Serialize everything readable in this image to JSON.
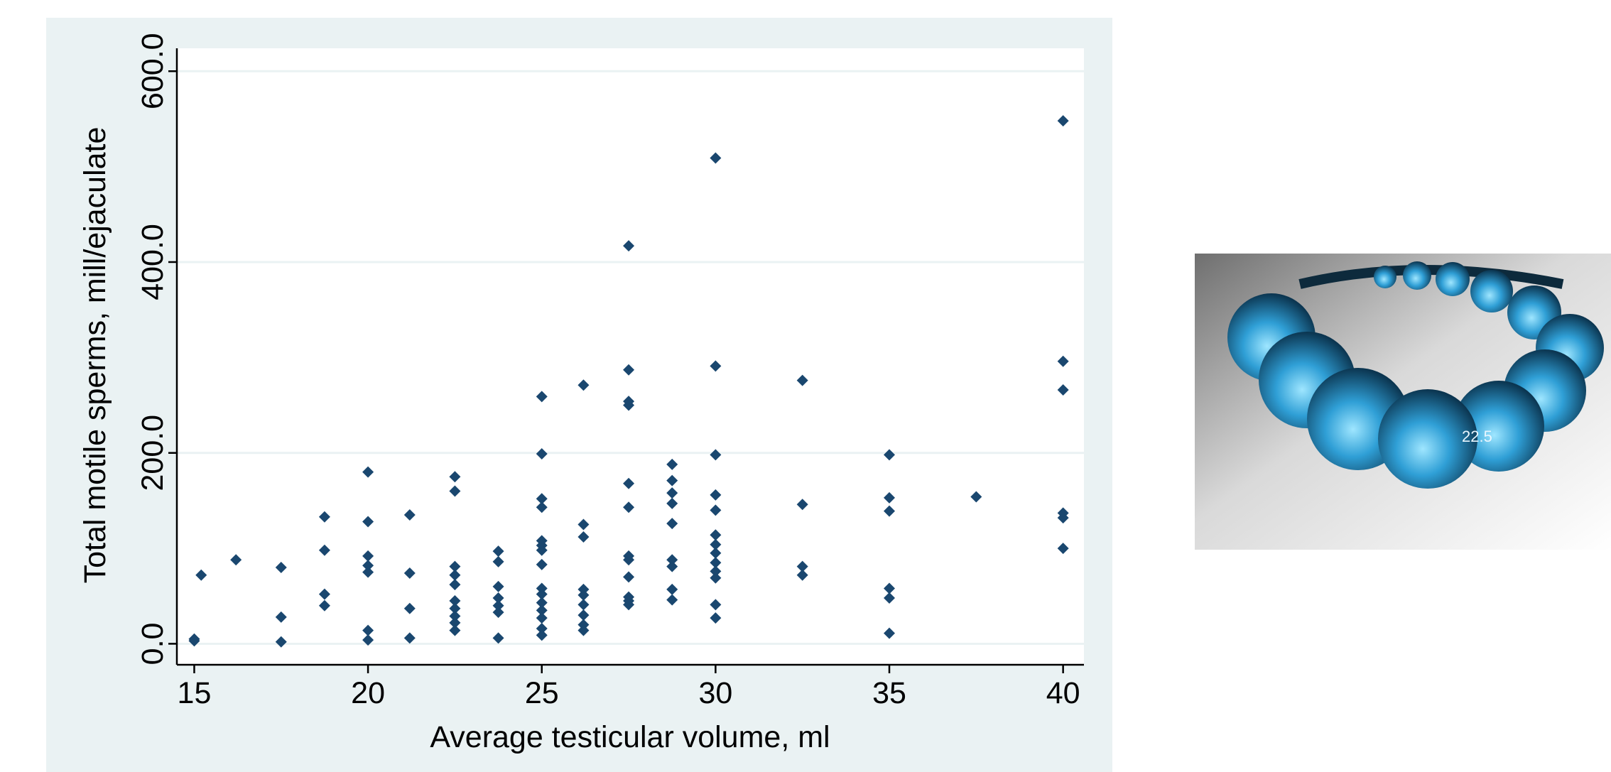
{
  "chart_data": {
    "type": "scatter",
    "xlabel": "Average testicular volume, ml",
    "ylabel": "Total motile sperms, mill/ejaculate",
    "x": [
      15,
      15,
      15.2,
      16.2,
      17.5,
      17.5,
      17.5,
      18.75,
      18.75,
      18.75,
      18.75,
      20,
      20,
      20,
      20,
      20,
      20,
      20,
      21.2,
      21.2,
      21.2,
      21.2,
      22.5,
      22.5,
      22.5,
      22.5,
      22.5,
      22.5,
      22.5,
      22.5,
      22.5,
      22.5,
      23.75,
      23.75,
      23.75,
      23.75,
      23.75,
      23.75,
      23.75,
      25,
      25,
      25,
      25,
      25,
      25,
      25,
      25,
      25,
      25,
      25,
      25,
      25,
      25,
      25,
      26.2,
      26.2,
      26.2,
      26.2,
      26.2,
      26.2,
      26.2,
      26.2,
      26.2,
      27.5,
      27.5,
      27.5,
      27.5,
      27.5,
      27.5,
      27.5,
      27.5,
      27.5,
      27.5,
      27.5,
      27.5,
      28.75,
      28.75,
      28.75,
      28.75,
      28.75,
      28.75,
      28.75,
      28.75,
      28.75,
      30,
      30,
      30,
      30,
      30,
      30,
      30,
      30,
      30,
      30,
      30,
      30,
      30,
      32.5,
      32.5,
      32.5,
      32.5,
      35,
      35,
      35,
      35,
      35,
      35,
      37.5,
      40,
      40,
      40,
      40,
      40,
      40
    ],
    "values": [
      5,
      3,
      72,
      88,
      80,
      28,
      2,
      133,
      98,
      52,
      40,
      180,
      128,
      92,
      82,
      75,
      14,
      4,
      135,
      74,
      37,
      6,
      175,
      160,
      81,
      72,
      62,
      45,
      37,
      29,
      22,
      14,
      97,
      86,
      60,
      48,
      40,
      33,
      6,
      259,
      199,
      152,
      143,
      108,
      103,
      98,
      83,
      58,
      52,
      43,
      35,
      27,
      16,
      9,
      271,
      125,
      112,
      57,
      51,
      41,
      30,
      20,
      14,
      417,
      287,
      254,
      250,
      168,
      143,
      92,
      88,
      70,
      49,
      45,
      41,
      188,
      171,
      158,
      147,
      126,
      88,
      81,
      57,
      46,
      509,
      291,
      198,
      156,
      140,
      114,
      104,
      95,
      85,
      76,
      69,
      41,
      27,
      276,
      146,
      81,
      72,
      198,
      153,
      139,
      58,
      48,
      11,
      154,
      548,
      296,
      266,
      137,
      132,
      100
    ],
    "color": "#1a476f",
    "xlim": [
      14.5,
      40.6
    ],
    "xticks": [
      15,
      20,
      25,
      30,
      35,
      40
    ],
    "ylim": [
      -22,
      624
    ],
    "yticks": [
      {
        "value": 0,
        "label": "0.0"
      },
      {
        "value": 200,
        "label": "200.0"
      },
      {
        "value": 400,
        "label": "400.0"
      },
      {
        "value": 600,
        "label": "600.0"
      }
    ],
    "grid": true
  },
  "photo": {
    "label": "22.5"
  }
}
